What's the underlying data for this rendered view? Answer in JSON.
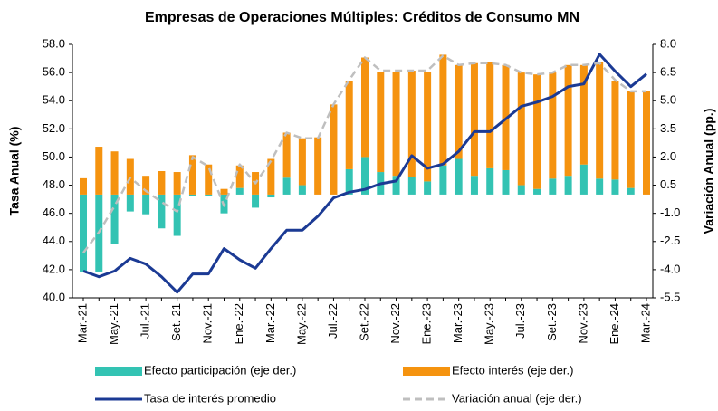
{
  "chart_data": {
    "type": "bar",
    "title": "Empresas de Operaciones Múltiples: Créditos de Consumo MN",
    "ylabel": "Tasa Anual (%)",
    "y2label": "Variación Anual (pp.)",
    "stacked": true,
    "categories": [
      "Mar.-21",
      null,
      "May.-21",
      null,
      "Jul.-21",
      null,
      "Set.-21",
      null,
      "Nov.-21",
      null,
      "Ene.-22",
      null,
      "Mar.-22",
      null,
      "May.-22",
      null,
      "Jul.-22",
      null,
      "Set.-22",
      null,
      "Nov.-22",
      null,
      "Ene.-23",
      null,
      "Mar.-23",
      null,
      "May.-23",
      null,
      "Jul.-23",
      null,
      "Set.-23",
      null,
      "Nov.-23",
      null,
      "Ene.-24",
      null,
      "Mar.-24"
    ],
    "ylim": [
      40,
      58
    ],
    "yticks": [
      {
        "value": 40,
        "label": "40.0"
      },
      {
        "value": 42,
        "label": "42.0"
      },
      {
        "value": 44,
        "label": "44.0"
      },
      {
        "value": 46,
        "label": "46.0"
      },
      {
        "value": 48,
        "label": "48.0"
      },
      {
        "value": 50,
        "label": "50.0"
      },
      {
        "value": 52,
        "label": "52.0"
      },
      {
        "value": 54,
        "label": "54.0"
      },
      {
        "value": 56,
        "label": "56.0"
      },
      {
        "value": 58,
        "label": "58.0"
      }
    ],
    "y2lim": [
      -5.5,
      8
    ],
    "y2ticks": [
      -5.5,
      {
        "value": -4,
        "label": "-4.0"
      },
      -2.5,
      {
        "value": -1,
        "label": "-1.0"
      },
      0.5,
      {
        "value": 2,
        "label": "2.0"
      },
      3.5,
      {
        "value": 5,
        "label": "5.0"
      },
      6.5,
      {
        "value": 8,
        "label": "8.0"
      }
    ],
    "series": [
      {
        "name": "Efecto participación (eje der.)",
        "type": "bar",
        "axis": "y2",
        "color": "#33c3b3",
        "values": [
          -4.1,
          -4.1,
          -2.65,
          -0.9,
          -1.05,
          -1.8,
          -2.2,
          -0.1,
          -0.05,
          -1.0,
          0.35,
          -0.7,
          -0.15,
          0.9,
          0.5,
          0,
          0,
          1.35,
          2.0,
          1.2,
          1.0,
          0.95,
          0.7,
          1.55,
          1.9,
          1.0,
          1.4,
          1.3,
          0.5,
          0.3,
          0.85,
          1.0,
          1.6,
          0.85,
          0.8,
          0.35,
          0
        ]
      },
      {
        "name": "Efecto interés (eje der.)",
        "type": "bar",
        "axis": "y2",
        "color": "#f5930f",
        "values": [
          0.87,
          2.55,
          2.3,
          1.9,
          1.0,
          1.25,
          1.2,
          2.1,
          1.6,
          0.3,
          1.2,
          1.2,
          1.9,
          2.4,
          2.5,
          3.05,
          4.8,
          4.7,
          5.3,
          5.35,
          5.55,
          5.65,
          5.85,
          5.9,
          5.0,
          6.0,
          5.65,
          5.6,
          6.0,
          6.1,
          5.65,
          5.9,
          5.3,
          6.2,
          5.25,
          5.15,
          5.5
        ]
      },
      {
        "name": "Tasa de interés promedio",
        "type": "line",
        "axis": "y",
        "color": "#1b3a94",
        "values": [
          41.9,
          41.5,
          41.9,
          42.8,
          42.4,
          41.5,
          40.4,
          41.7,
          41.7,
          43.5,
          42.7,
          42.1,
          43.5,
          44.8,
          44.8,
          45.8,
          47.1,
          47.5,
          47.7,
          48.1,
          48.3,
          50.1,
          49.2,
          49.5,
          50.4,
          51.8,
          51.8,
          52.7,
          53.6,
          53.9,
          54.3,
          55.0,
          55.2,
          57.3,
          56.1,
          55.0,
          55.9
        ]
      },
      {
        "name": "Variación anual (eje der.)",
        "type": "line",
        "axis": "y2",
        "dashed": true,
        "color": "#bfbfbf",
        "values": [
          -3.1,
          -2.0,
          -0.6,
          0.9,
          0.2,
          -0.4,
          -0.9,
          2.0,
          1.5,
          -0.6,
          1.6,
          0.6,
          1.8,
          3.3,
          3.0,
          3.0,
          4.8,
          6.1,
          7.3,
          6.6,
          6.6,
          6.6,
          6.6,
          7.4,
          6.9,
          7.0,
          7.0,
          6.9,
          6.5,
          6.4,
          6.5,
          6.9,
          6.9,
          7.0,
          6.1,
          5.5,
          5.5
        ]
      }
    ]
  }
}
